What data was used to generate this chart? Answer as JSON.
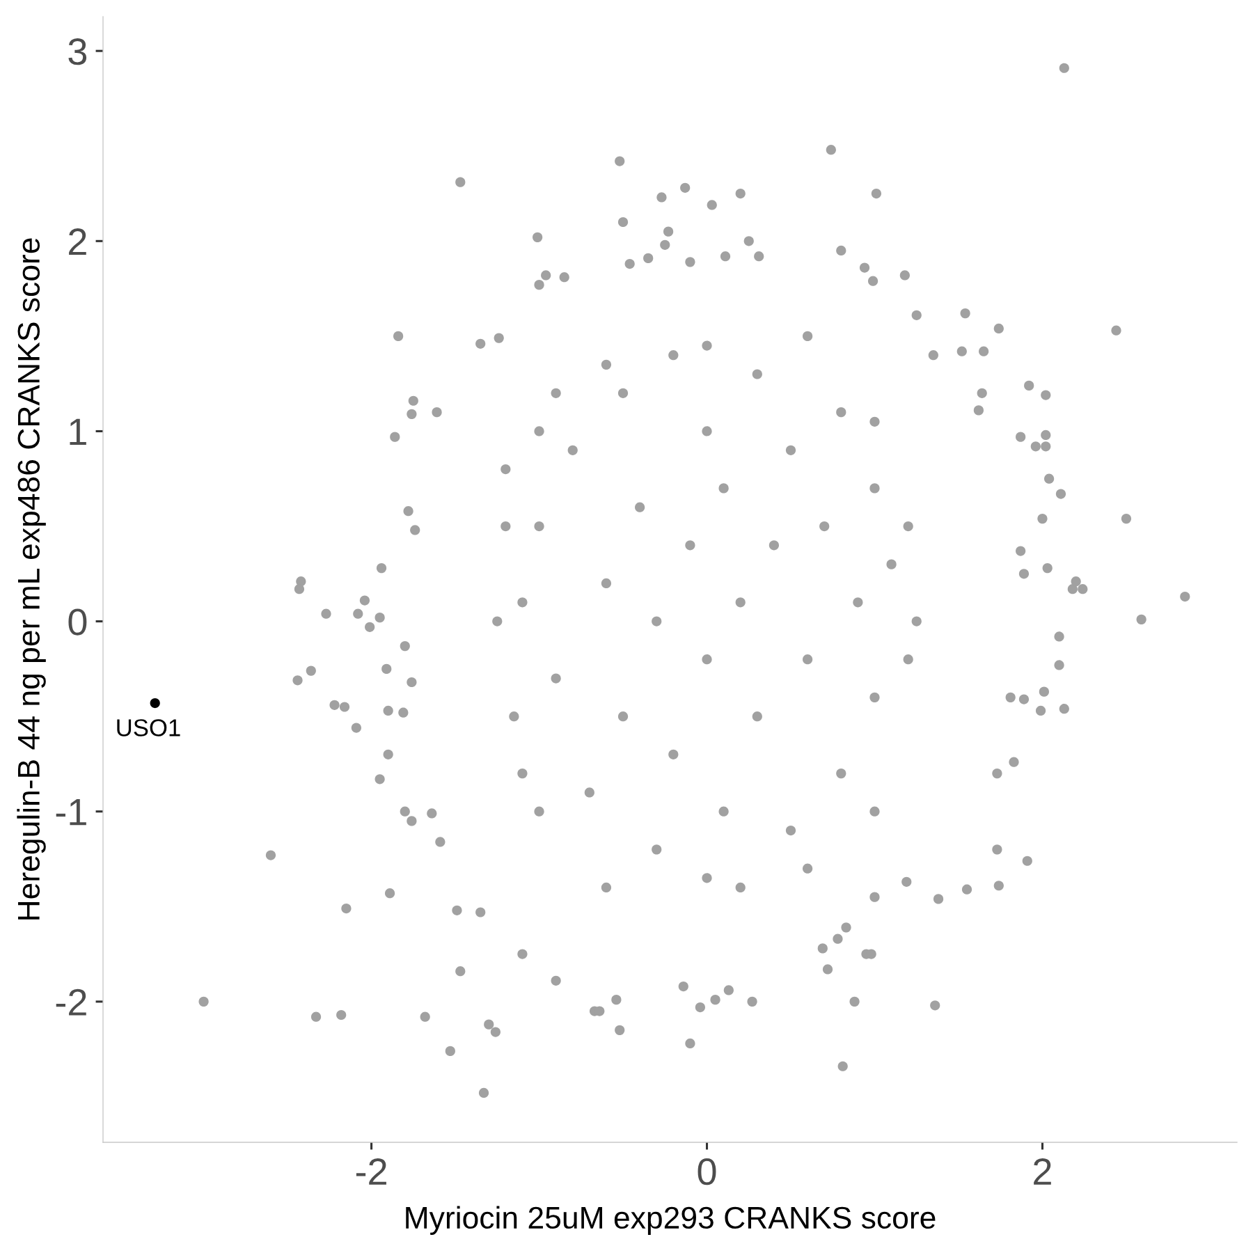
{
  "chart_data": {
    "type": "scatter",
    "xlabel": "Myriocin 25uM exp293 CRANKS score",
    "ylabel": "Heregulin-B 44 ng per mL exp486 CRANKS score",
    "xlim": [
      -3.6,
      3.16
    ],
    "ylim": [
      -2.74,
      3.18
    ],
    "xticks": [
      -2,
      0,
      2
    ],
    "yticks": [
      -2,
      -1,
      0,
      1,
      2,
      3
    ],
    "marker": "circle",
    "series": [
      {
        "color": "#a1a1a1",
        "x": [
          2.13,
          0.74,
          1.01,
          0.8,
          1.18,
          2.44,
          1.74,
          1.54,
          2.02,
          1.92,
          2.5,
          2.11,
          2.04,
          2.85,
          2.59,
          2.24,
          2.18,
          2.2,
          2.03,
          1.64,
          1.62,
          1.52,
          1.65,
          1.87,
          2.02,
          2.02,
          1.96,
          2.0,
          1.87,
          1.89,
          1.35,
          1.25,
          0.99,
          0.94,
          2.13,
          2.1,
          2.1,
          2.01,
          1.99,
          1.91,
          1.73,
          1.74,
          1.55,
          1.38,
          1.36,
          0.88,
          0.81,
          0.72,
          0.69,
          0.95,
          0.78,
          0.83,
          1.19,
          1.0,
          1.83,
          1.73,
          1.89,
          1.81,
          -1.33,
          -1.53,
          -1.68,
          -1.3,
          -1.26,
          -0.1,
          -0.04,
          0.05,
          0.27,
          -0.52,
          -0.67,
          -0.64,
          -0.54,
          -0.9,
          -1.47,
          -1.1,
          -0.14,
          0.13,
          0.98,
          -1.47,
          -0.52,
          -0.13,
          -0.27,
          0.2,
          0.03,
          -0.5,
          -1.01,
          -0.23,
          -0.25,
          0.25,
          0.31,
          0.11,
          -0.1,
          -0.35,
          -0.46,
          -0.96,
          -1.0,
          -0.85,
          -1.35,
          -1.24,
          -1.84,
          -1.75,
          -1.76,
          -1.61,
          -1.86,
          -1.78,
          -1.74,
          -3.0,
          -2.6,
          -2.33,
          -2.18,
          -2.15,
          -1.89,
          -2.42,
          -2.43,
          -2.27,
          -2.44,
          -2.36,
          -2.22,
          -2.16,
          -2.09,
          -1.95,
          -1.91,
          -1.9,
          -1.94,
          -2.04,
          -2.08,
          -1.95,
          -2.01,
          -1.8,
          -1.76,
          -1.81,
          -1.9,
          -1.8,
          -1.76,
          -1.64,
          -1.59,
          -1.49,
          -1.35,
          -1.0,
          -0.9,
          -0.8,
          -0.7,
          -0.6,
          -0.5,
          -0.5,
          -0.4,
          -0.3,
          -0.3,
          -0.2,
          -0.2,
          -0.1,
          0.0,
          0.0,
          0.1,
          0.1,
          0.2,
          0.3,
          0.3,
          0.4,
          0.5,
          0.5,
          0.6,
          0.7,
          0.8,
          0.8,
          0.9,
          1.0,
          1.0,
          1.1,
          -1.1,
          -1.1,
          -0.9,
          0.6,
          -0.6,
          0.2,
          1.2,
          -1.2,
          -1.25,
          -1.2,
          -1.15,
          -1.0,
          -1.0,
          -0.6,
          0.0,
          0.0,
          0.6,
          1.0,
          1.0,
          1.2,
          1.25
        ],
        "values": [
          2.91,
          2.48,
          2.25,
          1.95,
          1.82,
          1.53,
          1.54,
          1.62,
          1.19,
          1.24,
          0.54,
          0.67,
          0.75,
          0.13,
          0.01,
          0.17,
          0.17,
          0.21,
          0.28,
          1.2,
          1.11,
          1.42,
          1.42,
          0.97,
          0.98,
          0.92,
          0.92,
          0.54,
          0.37,
          0.25,
          1.4,
          1.61,
          1.79,
          1.86,
          -0.46,
          -0.23,
          -0.08,
          -0.37,
          -0.47,
          -1.26,
          -1.2,
          -1.39,
          -1.41,
          -1.46,
          -2.02,
          -2.0,
          -2.34,
          -1.83,
          -1.72,
          -1.75,
          -1.67,
          -1.61,
          -1.37,
          -1.45,
          -0.74,
          -0.8,
          -0.41,
          -0.4,
          -2.48,
          -2.26,
          -2.08,
          -2.12,
          -2.16,
          -2.22,
          -2.03,
          -1.99,
          -2.0,
          -2.15,
          -2.05,
          -2.05,
          -1.99,
          -1.89,
          -1.84,
          -1.75,
          -1.92,
          -1.94,
          -1.75,
          2.31,
          2.42,
          2.28,
          2.23,
          2.25,
          2.19,
          2.1,
          2.02,
          2.05,
          1.98,
          2.0,
          1.92,
          1.92,
          1.89,
          1.91,
          1.88,
          1.82,
          1.77,
          1.81,
          1.46,
          1.49,
          1.5,
          1.16,
          1.09,
          1.1,
          0.97,
          0.58,
          0.48,
          -2.0,
          -1.23,
          -2.08,
          -2.07,
          -1.51,
          -1.43,
          0.21,
          0.17,
          0.04,
          -0.31,
          -0.26,
          -0.44,
          -0.45,
          -0.56,
          -0.83,
          -0.25,
          -0.47,
          0.28,
          0.11,
          0.04,
          0.02,
          -0.03,
          -0.13,
          -0.32,
          -0.48,
          -0.7,
          -1.0,
          -1.05,
          -1.01,
          -1.16,
          -1.52,
          -1.53,
          0.5,
          -0.3,
          0.9,
          -0.9,
          0.2,
          1.2,
          -0.5,
          0.6,
          -1.2,
          0.0,
          1.4,
          -0.7,
          0.4,
          -0.2,
          1.0,
          -1.0,
          0.7,
          0.1,
          -0.5,
          1.3,
          0.4,
          -1.1,
          0.9,
          -0.2,
          0.5,
          -0.8,
          1.1,
          0.1,
          -0.4,
          0.7,
          0.3,
          -0.8,
          0.1,
          1.2,
          1.5,
          -1.4,
          -1.4,
          -0.2,
          0.8,
          0.0,
          0.5,
          -0.5,
          1.0,
          -1.0,
          1.35,
          1.45,
          -1.35,
          -1.3,
          1.05,
          -1.0,
          0.5,
          0.0
        ]
      },
      {
        "color": "#000000",
        "x": [
          -3.29
        ],
        "values": [
          -0.43
        ]
      }
    ],
    "annotations": [
      {
        "text": "USO1",
        "x": -3.29,
        "y": -0.43
      }
    ]
  }
}
